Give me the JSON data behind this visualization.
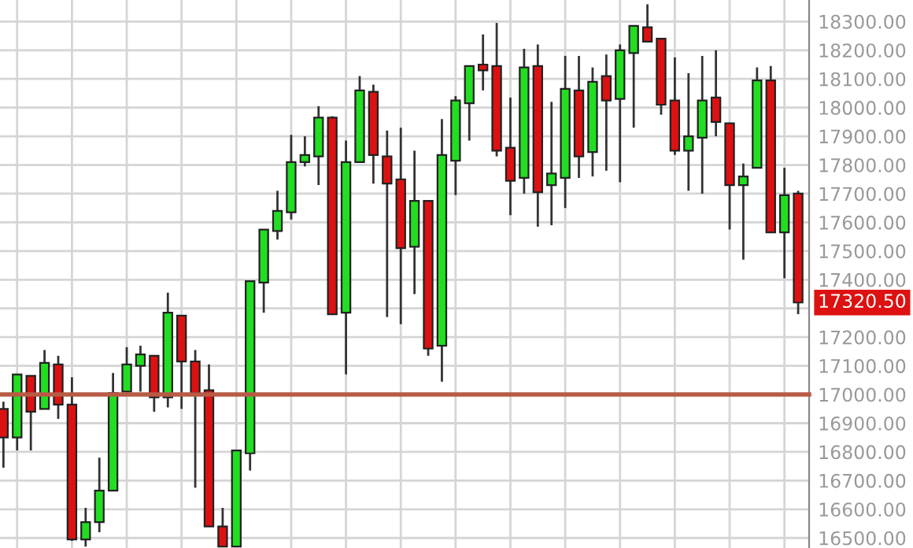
{
  "chart_data": {
    "type": "candlestick",
    "categories": [
      null,
      null,
      null,
      null,
      null,
      null,
      null,
      null,
      null,
      null,
      null,
      null,
      null,
      null,
      null,
      null,
      null,
      null,
      null,
      null,
      null,
      null,
      null,
      null,
      null,
      null,
      null,
      null,
      null,
      null,
      null,
      null,
      null,
      null,
      null,
      null,
      null,
      null,
      null,
      null,
      null,
      null,
      null,
      null,
      null,
      null,
      null,
      null,
      null,
      null,
      null,
      null,
      null,
      null,
      null,
      null,
      null,
      null,
      null
    ],
    "ohlc": [
      [
        16950,
        16975,
        16745,
        16850
      ],
      [
        16850,
        17070,
        16805,
        17070
      ],
      [
        17065,
        17065,
        16805,
        16940
      ],
      [
        16950,
        17155,
        16950,
        17110
      ],
      [
        17105,
        17135,
        16915,
        16965
      ],
      [
        16965,
        17060,
        16490,
        16495
      ],
      [
        16495,
        16605,
        16470,
        16555
      ],
      [
        16555,
        16780,
        16520,
        16665
      ],
      [
        16665,
        17075,
        16665,
        17005
      ],
      [
        17010,
        17165,
        17010,
        17105
      ],
      [
        17100,
        17170,
        17010,
        17140
      ],
      [
        17135,
        17135,
        16940,
        16990
      ],
      [
        16990,
        17355,
        16955,
        17285
      ],
      [
        17275,
        17275,
        16950,
        17115
      ],
      [
        17115,
        17155,
        16675,
        17005
      ],
      [
        17015,
        17105,
        16540,
        16540
      ],
      [
        16540,
        16605,
        16470,
        16470
      ],
      [
        16470,
        16805,
        16470,
        16805
      ],
      [
        16795,
        17395,
        16735,
        17395
      ],
      [
        17390,
        17575,
        17285,
        17575
      ],
      [
        17570,
        17710,
        17540,
        17640
      ],
      [
        17635,
        17905,
        17610,
        17810
      ],
      [
        17810,
        17900,
        17795,
        17835
      ],
      [
        17830,
        18005,
        17730,
        17965
      ],
      [
        17965,
        17970,
        17280,
        17280
      ],
      [
        17285,
        17885,
        17070,
        17810
      ],
      [
        17810,
        18110,
        17810,
        18060
      ],
      [
        18055,
        18080,
        17735,
        17835
      ],
      [
        17830,
        17920,
        17270,
        17735
      ],
      [
        17750,
        17930,
        17245,
        17510
      ],
      [
        17515,
        17850,
        17350,
        17675
      ],
      [
        17675,
        17675,
        17135,
        17160
      ],
      [
        17170,
        17960,
        17045,
        17835
      ],
      [
        17815,
        18040,
        17695,
        18025
      ],
      [
        18015,
        18145,
        17885,
        18145
      ],
      [
        18150,
        18255,
        18060,
        18130
      ],
      [
        18145,
        18295,
        17830,
        17850
      ],
      [
        17860,
        18035,
        17625,
        17745
      ],
      [
        17755,
        18205,
        17700,
        18140
      ],
      [
        18145,
        18220,
        17585,
        17705
      ],
      [
        17730,
        18020,
        17590,
        17770
      ],
      [
        17755,
        18180,
        17650,
        18065
      ],
      [
        18060,
        18180,
        17755,
        17830
      ],
      [
        17845,
        18140,
        17760,
        18090
      ],
      [
        18110,
        18185,
        17780,
        18025
      ],
      [
        18030,
        18220,
        17740,
        18200
      ],
      [
        18190,
        18285,
        17930,
        18285
      ],
      [
        18280,
        18360,
        18230,
        18230
      ],
      [
        18240,
        18240,
        17975,
        18010
      ],
      [
        18025,
        18175,
        17835,
        17850
      ],
      [
        17850,
        18120,
        17710,
        17900
      ],
      [
        17895,
        18180,
        17700,
        18025
      ],
      [
        18035,
        18200,
        17900,
        17950
      ],
      [
        17945,
        17945,
        17575,
        17730
      ],
      [
        17730,
        17805,
        17470,
        17760
      ],
      [
        17790,
        18140,
        17790,
        18095
      ],
      [
        18095,
        18145,
        17565,
        17565
      ],
      [
        17565,
        17790,
        17405,
        17695
      ],
      [
        17700,
        17710,
        17280,
        17320.5
      ]
    ],
    "colors": [
      "#dd1111",
      "#22dd22",
      "#dd1111",
      "#22dd22",
      "#dd1111",
      "#dd1111",
      "#22dd22",
      "#22dd22",
      "#22dd22",
      "#22dd22",
      "#22dd22",
      "#dd1111",
      "#22dd22",
      "#dd1111",
      "#dd1111",
      "#dd1111",
      "#dd1111",
      "#22dd22",
      "#22dd22",
      "#22dd22",
      "#22dd22",
      "#22dd22",
      "#22dd22",
      "#22dd22",
      "#dd1111",
      "#22dd22",
      "#22dd22",
      "#dd1111",
      "#dd1111",
      "#dd1111",
      "#22dd22",
      "#dd1111",
      "#22dd22",
      "#22dd22",
      "#22dd22",
      "#dd1111",
      "#dd1111",
      "#dd1111",
      "#22dd22",
      "#dd1111",
      "#22dd22",
      "#22dd22",
      "#dd1111",
      "#22dd22",
      "#dd1111",
      "#22dd22",
      "#22dd22",
      "#dd1111",
      "#dd1111",
      "#dd1111",
      "#22dd22",
      "#22dd22",
      "#dd1111",
      "#dd1111",
      "#22dd22",
      "#22dd22",
      "#dd1111",
      "#22dd22",
      "#dd1111"
    ],
    "ylim": [
      16465,
      18375
    ],
    "yticks": [
      {
        "value": 16500,
        "label": "16500.00"
      },
      {
        "value": 16600,
        "label": "16600.00"
      },
      {
        "value": 16700,
        "label": "16700.00"
      },
      {
        "value": 16800,
        "label": "16800.00"
      },
      {
        "value": 16900,
        "label": "16900.00"
      },
      {
        "value": 17000,
        "label": "17000.00"
      },
      {
        "value": 17100,
        "label": "17100.00"
      },
      {
        "value": 17200,
        "label": "17200.00"
      },
      {
        "value": 17300,
        "label": null
      },
      {
        "value": 17400,
        "label": "17400.00"
      },
      {
        "value": 17500,
        "label": "17500.00"
      },
      {
        "value": 17600,
        "label": "17600.00"
      },
      {
        "value": 17700,
        "label": "17700.00"
      },
      {
        "value": 17800,
        "label": "17800.00"
      },
      {
        "value": 17900,
        "label": "17900.00"
      },
      {
        "value": 18000,
        "label": "18000.00"
      },
      {
        "value": 18100,
        "label": "18100.00"
      },
      {
        "value": 18200,
        "label": "18200.00"
      },
      {
        "value": 18300,
        "label": "18300.00"
      }
    ],
    "grid": true,
    "ref_lines": [
      {
        "axis": "y",
        "value": 17000,
        "color": "#b85a45"
      }
    ],
    "annotations": [
      "17320.50"
    ]
  }
}
